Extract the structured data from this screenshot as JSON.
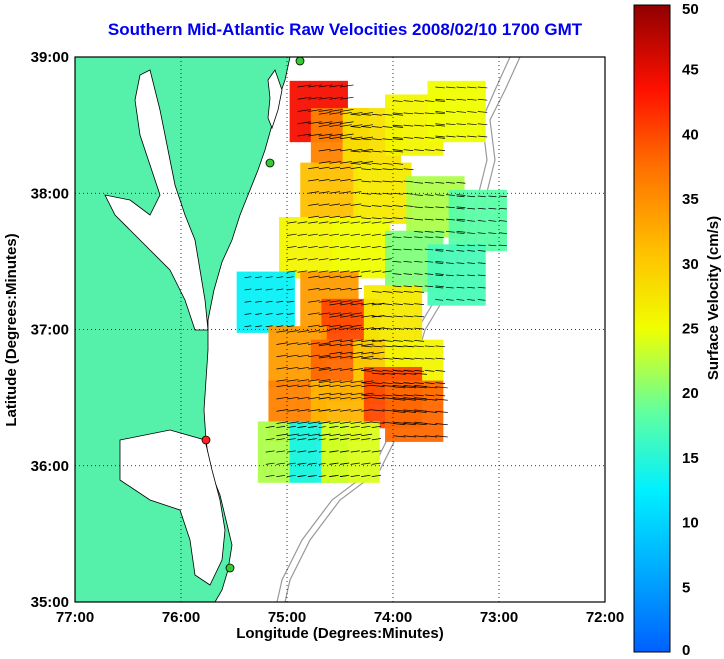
{
  "title": "Southern Mid-Atlantic Raw Velocities 2008/02/10 1700 GMT",
  "xlabel": "Longitude (Degrees:Minutes)",
  "ylabel": "Latitude (Degrees:Minutes)",
  "colorbar": {
    "label": "Surface Velocity (cm/s)",
    "range": [
      0,
      50
    ],
    "ticks": [
      "0",
      "5",
      "10",
      "15",
      "20",
      "25",
      "30",
      "35",
      "40",
      "45",
      "50"
    ],
    "colormap": "jet"
  },
  "map": {
    "lon_range": [
      -77,
      -72
    ],
    "lat_range": [
      35,
      39
    ],
    "x_ticks": [
      "77:00",
      "76:00",
      "75:00",
      "74:00",
      "73:00",
      "72:00"
    ],
    "y_ticks": [
      "35:00",
      "36:00",
      "37:00",
      "38:00",
      "39:00"
    ],
    "grid": "dotted",
    "land_color": "#55f0aa",
    "water_color": "#ffffff",
    "coastline_color": "#000000",
    "bathymetry_color": "#999999"
  },
  "chart_data": {
    "type": "heatmap",
    "description_fields": [
      "lon",
      "lat",
      "speed_cm_s"
    ],
    "title": "Southern Mid-Atlantic Raw Velocities 2008/02/10 1700 GMT",
    "xlabel": "Longitude (Degrees:Minutes)",
    "ylabel": "Latitude (Degrees:Minutes)",
    "velocity_cells": [
      {
        "lon": -74.7,
        "lat": 38.6,
        "speed": 44
      },
      {
        "lon": -74.5,
        "lat": 38.4,
        "speed": 36
      },
      {
        "lon": -74.2,
        "lat": 38.4,
        "speed": 28
      },
      {
        "lon": -73.8,
        "lat": 38.5,
        "speed": 26
      },
      {
        "lon": -73.4,
        "lat": 38.6,
        "speed": 25
      },
      {
        "lon": -74.6,
        "lat": 38.0,
        "speed": 31
      },
      {
        "lon": -74.1,
        "lat": 38.0,
        "speed": 27
      },
      {
        "lon": -73.6,
        "lat": 37.9,
        "speed": 22
      },
      {
        "lon": -73.2,
        "lat": 37.8,
        "speed": 18
      },
      {
        "lon": -74.8,
        "lat": 37.6,
        "speed": 26
      },
      {
        "lon": -74.3,
        "lat": 37.6,
        "speed": 25
      },
      {
        "lon": -73.8,
        "lat": 37.5,
        "speed": 20
      },
      {
        "lon": -73.4,
        "lat": 37.4,
        "speed": 17
      },
      {
        "lon": -75.2,
        "lat": 37.2,
        "speed": 13
      },
      {
        "lon": -74.6,
        "lat": 37.2,
        "speed": 34
      },
      {
        "lon": -74.4,
        "lat": 37.0,
        "speed": 40
      },
      {
        "lon": -74.0,
        "lat": 37.1,
        "speed": 27
      },
      {
        "lon": -74.9,
        "lat": 36.8,
        "speed": 34
      },
      {
        "lon": -74.5,
        "lat": 36.7,
        "speed": 38
      },
      {
        "lon": -74.1,
        "lat": 36.7,
        "speed": 30
      },
      {
        "lon": -73.8,
        "lat": 36.7,
        "speed": 26
      },
      {
        "lon": -74.9,
        "lat": 36.4,
        "speed": 36
      },
      {
        "lon": -74.5,
        "lat": 36.4,
        "speed": 32
      },
      {
        "lon": -74.0,
        "lat": 36.5,
        "speed": 40
      },
      {
        "lon": -73.8,
        "lat": 36.4,
        "speed": 38
      },
      {
        "lon": -75.0,
        "lat": 36.1,
        "speed": 22
      },
      {
        "lon": -74.7,
        "lat": 36.1,
        "speed": 14
      },
      {
        "lon": -74.4,
        "lat": 36.1,
        "speed": 24
      }
    ]
  }
}
